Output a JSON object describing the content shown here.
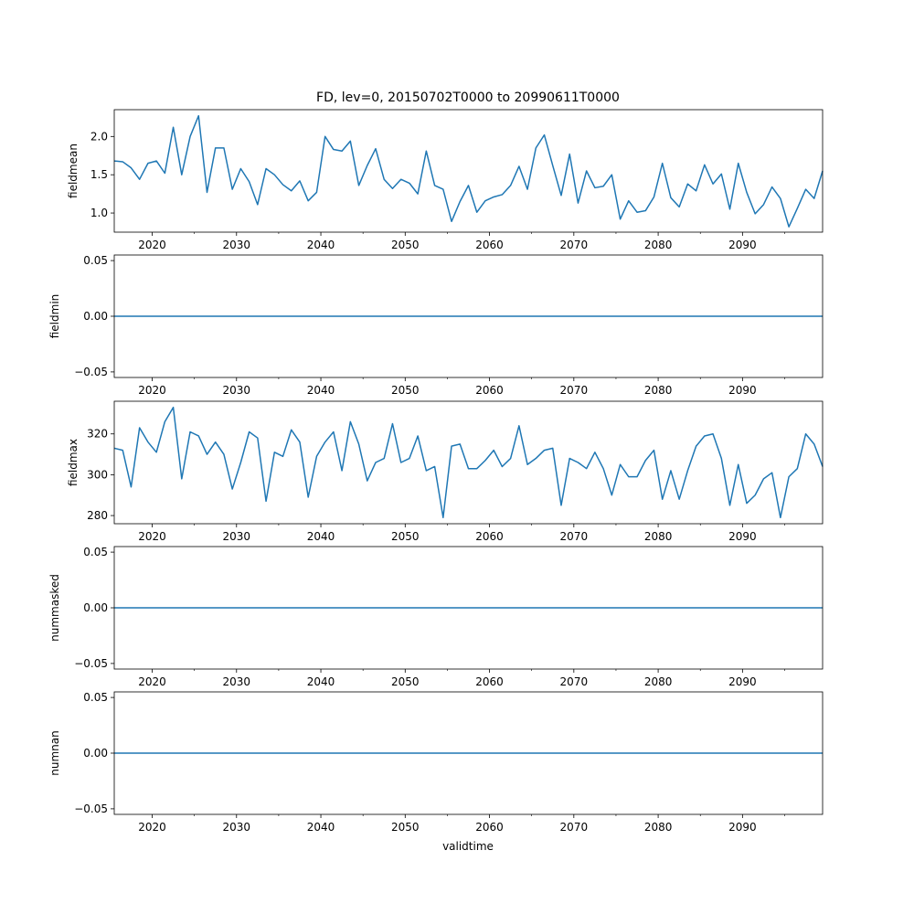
{
  "title": "FD, lev=0, 20150702T0000 to 20990611T0000",
  "xlabel": "validtime",
  "colors": {
    "line": "#1f77b4",
    "axes": "#000000"
  },
  "chart_data": [
    {
      "type": "line",
      "ylabel": "fieldmean",
      "xlim": [
        2015.5,
        2099.5
      ],
      "ylim": [
        0.75,
        2.35
      ],
      "xticks": [
        2020,
        2030,
        2040,
        2050,
        2060,
        2070,
        2080,
        2090
      ],
      "xtick_labels": [
        "2020",
        "2030",
        "2040",
        "2050",
        "2060",
        "2070",
        "2080",
        "2090"
      ],
      "yticks": [
        1.0,
        1.5,
        2.0
      ],
      "ytick_labels": [
        "1.0",
        "1.5",
        "2.0"
      ],
      "x": [
        2015.5,
        2016.5,
        2017.5,
        2018.5,
        2019.5,
        2020.5,
        2021.5,
        2022.5,
        2023.5,
        2024.5,
        2025.5,
        2026.5,
        2027.5,
        2028.5,
        2029.5,
        2030.5,
        2031.5,
        2032.5,
        2033.5,
        2034.5,
        2035.5,
        2036.5,
        2037.5,
        2038.5,
        2039.5,
        2040.5,
        2041.5,
        2042.5,
        2043.5,
        2044.5,
        2045.5,
        2046.5,
        2047.5,
        2048.5,
        2049.5,
        2050.5,
        2051.5,
        2052.5,
        2053.5,
        2054.5,
        2055.5,
        2056.5,
        2057.5,
        2058.5,
        2059.5,
        2060.5,
        2061.5,
        2062.5,
        2063.5,
        2064.5,
        2065.5,
        2066.5,
        2067.5,
        2068.5,
        2069.5,
        2070.5,
        2071.5,
        2072.5,
        2073.5,
        2074.5,
        2075.5,
        2076.5,
        2077.5,
        2078.5,
        2079.5,
        2080.5,
        2081.5,
        2082.5,
        2083.5,
        2084.5,
        2085.5,
        2086.5,
        2087.5,
        2088.5,
        2089.5,
        2090.5,
        2091.5,
        2092.5,
        2093.5,
        2094.5,
        2095.5,
        2096.5,
        2097.5,
        2098.5,
        2099.5
      ],
      "values": [
        1.68,
        1.67,
        1.59,
        1.44,
        1.65,
        1.68,
        1.52,
        2.12,
        1.5,
        2.0,
        2.27,
        1.27,
        1.85,
        1.85,
        1.31,
        1.58,
        1.41,
        1.11,
        1.58,
        1.5,
        1.37,
        1.29,
        1.42,
        1.16,
        1.27,
        2.0,
        1.83,
        1.81,
        1.94,
        1.36,
        1.62,
        1.84,
        1.44,
        1.32,
        1.44,
        1.39,
        1.25,
        1.81,
        1.36,
        1.31,
        0.89,
        1.15,
        1.36,
        1.01,
        1.16,
        1.21,
        1.24,
        1.36,
        1.61,
        1.31,
        1.85,
        2.02,
        1.62,
        1.23,
        1.77,
        1.13,
        1.55,
        1.33,
        1.35,
        1.5,
        0.92,
        1.16,
        1.01,
        1.03,
        1.21,
        1.65,
        1.2,
        1.08,
        1.38,
        1.29,
        1.63,
        1.38,
        1.51,
        1.05,
        1.65,
        1.27,
        0.99,
        1.11,
        1.34,
        1.19,
        0.82,
        1.06,
        1.31,
        1.19,
        1.55
      ]
    },
    {
      "type": "line",
      "ylabel": "fieldmin",
      "xlim": [
        2015.5,
        2099.5
      ],
      "ylim": [
        -0.055,
        0.055
      ],
      "xticks": [
        2020,
        2030,
        2040,
        2050,
        2060,
        2070,
        2080,
        2090
      ],
      "xtick_labels": [
        "2020",
        "2030",
        "2040",
        "2050",
        "2060",
        "2070",
        "2080",
        "2090"
      ],
      "yticks": [
        -0.05,
        0.0,
        0.05
      ],
      "ytick_labels": [
        "−0.05",
        "0.00",
        "0.05"
      ],
      "x": [
        2015.5,
        2099.5
      ],
      "values": [
        0,
        0
      ]
    },
    {
      "type": "line",
      "ylabel": "fieldmax",
      "xlim": [
        2015.5,
        2099.5
      ],
      "ylim": [
        276,
        336
      ],
      "xticks": [
        2020,
        2030,
        2040,
        2050,
        2060,
        2070,
        2080,
        2090
      ],
      "xtick_labels": [
        "2020",
        "2030",
        "2040",
        "2050",
        "2060",
        "2070",
        "2080",
        "2090"
      ],
      "yticks": [
        280,
        300,
        320
      ],
      "ytick_labels": [
        "280",
        "300",
        "320"
      ],
      "x": [
        2015.5,
        2016.5,
        2017.5,
        2018.5,
        2019.5,
        2020.5,
        2021.5,
        2022.5,
        2023.5,
        2024.5,
        2025.5,
        2026.5,
        2027.5,
        2028.5,
        2029.5,
        2030.5,
        2031.5,
        2032.5,
        2033.5,
        2034.5,
        2035.5,
        2036.5,
        2037.5,
        2038.5,
        2039.5,
        2040.5,
        2041.5,
        2042.5,
        2043.5,
        2044.5,
        2045.5,
        2046.5,
        2047.5,
        2048.5,
        2049.5,
        2050.5,
        2051.5,
        2052.5,
        2053.5,
        2054.5,
        2055.5,
        2056.5,
        2057.5,
        2058.5,
        2059.5,
        2060.5,
        2061.5,
        2062.5,
        2063.5,
        2064.5,
        2065.5,
        2066.5,
        2067.5,
        2068.5,
        2069.5,
        2070.5,
        2071.5,
        2072.5,
        2073.5,
        2074.5,
        2075.5,
        2076.5,
        2077.5,
        2078.5,
        2079.5,
        2080.5,
        2081.5,
        2082.5,
        2083.5,
        2084.5,
        2085.5,
        2086.5,
        2087.5,
        2088.5,
        2089.5,
        2090.5,
        2091.5,
        2092.5,
        2093.5,
        2094.5,
        2095.5,
        2096.5,
        2097.5,
        2098.5,
        2099.5
      ],
      "values": [
        313,
        312,
        294,
        323,
        316,
        311,
        326,
        333,
        298,
        321,
        319,
        310,
        316,
        310,
        293,
        306,
        321,
        318,
        287,
        311,
        309,
        322,
        316,
        289,
        309,
        316,
        321,
        302,
        326,
        315,
        297,
        306,
        308,
        325,
        306,
        308,
        319,
        302,
        304,
        279,
        314,
        315,
        303,
        303,
        307,
        312,
        304,
        308,
        324,
        305,
        308,
        312,
        313,
        285,
        308,
        306,
        303,
        311,
        303,
        290,
        305,
        299,
        299,
        307,
        312,
        288,
        302,
        288,
        302,
        314,
        319,
        320,
        308,
        285,
        305,
        286,
        290,
        298,
        301,
        279,
        299,
        303,
        320,
        315,
        304
      ]
    },
    {
      "type": "line",
      "ylabel": "nummasked",
      "xlim": [
        2015.5,
        2099.5
      ],
      "ylim": [
        -0.055,
        0.055
      ],
      "xticks": [
        2020,
        2030,
        2040,
        2050,
        2060,
        2070,
        2080,
        2090
      ],
      "xtick_labels": [
        "2020",
        "2030",
        "2040",
        "2050",
        "2060",
        "2070",
        "2080",
        "2090"
      ],
      "yticks": [
        -0.05,
        0.0,
        0.05
      ],
      "ytick_labels": [
        "−0.05",
        "0.00",
        "0.05"
      ],
      "x": [
        2015.5,
        2099.5
      ],
      "values": [
        0,
        0
      ]
    },
    {
      "type": "line",
      "ylabel": "numnan",
      "xlim": [
        2015.5,
        2099.5
      ],
      "ylim": [
        -0.055,
        0.055
      ],
      "xticks": [
        2020,
        2030,
        2040,
        2050,
        2060,
        2070,
        2080,
        2090
      ],
      "xtick_labels": [
        "2020",
        "2030",
        "2040",
        "2050",
        "2060",
        "2070",
        "2080",
        "2090"
      ],
      "yticks": [
        -0.05,
        0.0,
        0.05
      ],
      "ytick_labels": [
        "−0.05",
        "0.00",
        "0.05"
      ],
      "x": [
        2015.5,
        2099.5
      ],
      "values": [
        0,
        0
      ]
    }
  ]
}
